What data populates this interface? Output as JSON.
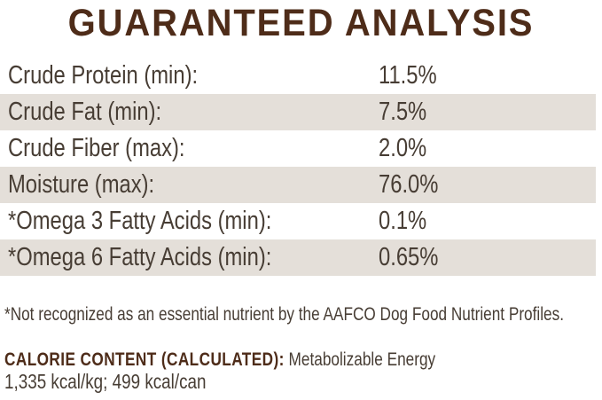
{
  "title": "GUARANTEED ANALYSIS",
  "analysis_table": {
    "rows": [
      {
        "label": "Crude Protein (min):",
        "value": "11.5%"
      },
      {
        "label": "Crude Fat (min):",
        "value": "7.5%"
      },
      {
        "label": "Crude Fiber (max):",
        "value": "2.0%"
      },
      {
        "label": "Moisture (max):",
        "value": "76.0%"
      },
      {
        "label": "*Omega 3 Fatty Acids (min):",
        "value": "0.1%"
      },
      {
        "label": "*Omega 6 Fatty Acids (min):",
        "value": "0.65%"
      }
    ]
  },
  "footnote": "*Not recognized as an essential nutrient by the AAFCO Dog Food Nutrient Profiles.",
  "calorie_content": {
    "heading": "CALORIE CONTENT (CALCULATED):",
    "description": " Metabolizable Energy",
    "values": "1,335 kcal/kg; 499 kcal/can"
  },
  "colors": {
    "title_brown": "#4e2c19",
    "body_text": "#473d34",
    "row_alt_bg": "#e4dfd9",
    "background": "#ffffff"
  }
}
